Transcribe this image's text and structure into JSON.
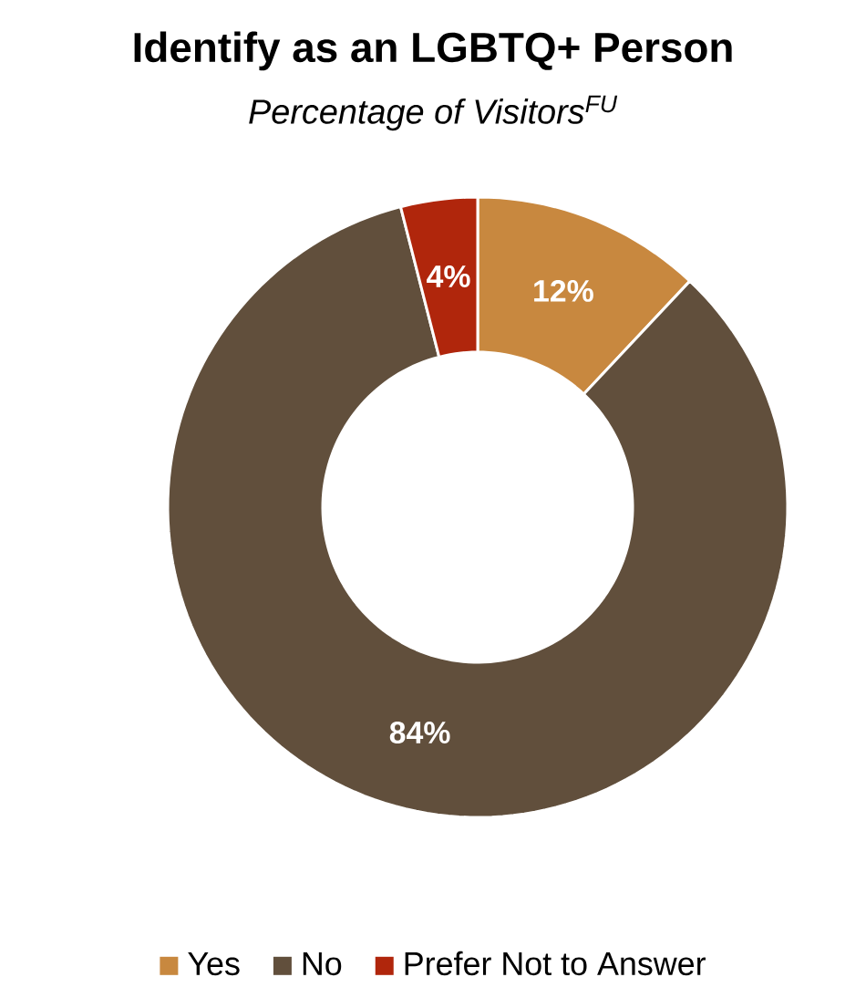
{
  "chart_data": {
    "type": "donut",
    "title": "Identify as an LGBTQ+ Person",
    "subtitle": "Percentage of Visitors$^{FU}$",
    "categories": [
      "Yes",
      "No",
      "Prefer Not to Answer"
    ],
    "values": [
      12,
      84,
      4
    ],
    "value_labels": [
      "12%",
      "84%",
      "4%"
    ],
    "colors": [
      "#c8883f",
      "#614f3c",
      "#b0260c"
    ],
    "legend": "bottom"
  }
}
